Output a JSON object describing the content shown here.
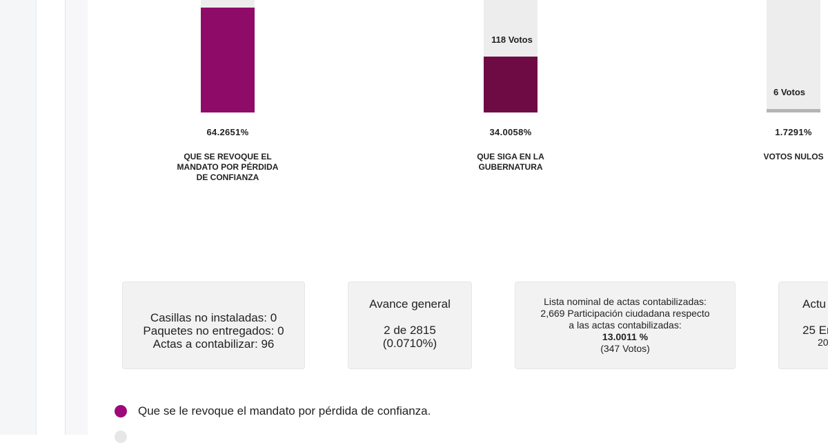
{
  "colors": {
    "revoke": "#8e0c68",
    "continue": "#6e0a44",
    "null": "#b5b5b5",
    "track": "#ededed",
    "legend_dot": "#9c0a7a"
  },
  "results": [
    {
      "id": "revoke",
      "percent": "64.2651%",
      "percent_value": 64.2651,
      "votes_label": "",
      "label": "QUE SE REVOQUE EL MANDATO POR PÉRDIDA DE CONFIANZA"
    },
    {
      "id": "continue",
      "percent": "34.0058%",
      "percent_value": 34.0058,
      "votes_label": "118 Votos",
      "label": "QUE SIGA EN LA GUBERNATURA"
    },
    {
      "id": "null",
      "percent": "1.7291%",
      "percent_value": 1.7291,
      "votes_label": "6 Votos",
      "label": "VOTOS NULOS"
    }
  ],
  "cards": {
    "casillas": {
      "line1": "Casillas no instaladas: 0",
      "line2": "Paquetes no entregados: 0",
      "line3": "Actas a contabilizar: 96"
    },
    "avance": {
      "title": "Avance general",
      "value": "2 de 2815",
      "percent": "(0.0710%)"
    },
    "lista": {
      "line1": "Lista nominal de actas contabilizadas:",
      "line2": "2,669 Participación ciudadana respecto",
      "line3": "a las actas contabilizadas:",
      "percent": "13.0011 %",
      "votes": "(347 Votos)"
    },
    "actualizacion": {
      "title": "Actu",
      "date": "25 En",
      "year": "20"
    }
  },
  "legend": {
    "item1": "Que se le revoque el mandato por pérdida de confianza."
  }
}
